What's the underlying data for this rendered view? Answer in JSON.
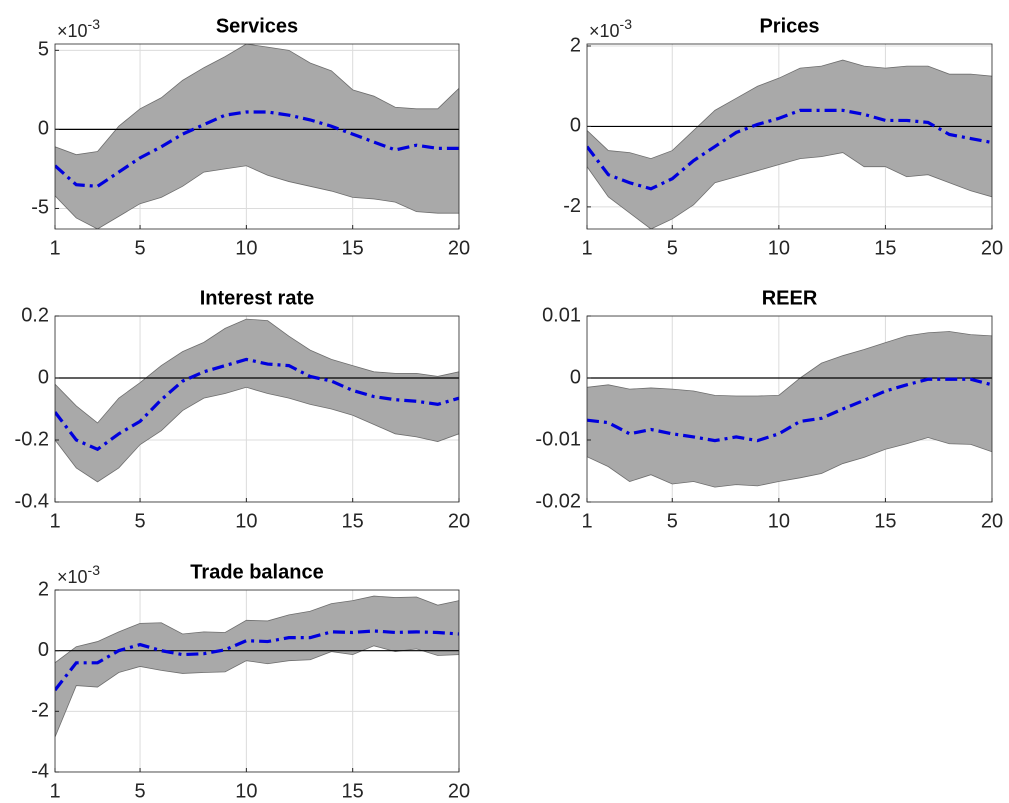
{
  "chart_data": [
    {
      "type": "line",
      "title": "Services",
      "y_multiplier": {
        "base": "×10",
        "exponent": "-3"
      },
      "x": [
        1,
        2,
        3,
        4,
        5,
        6,
        7,
        8,
        9,
        10,
        11,
        12,
        13,
        14,
        15,
        16,
        17,
        18,
        19,
        20
      ],
      "xlim": [
        1,
        20
      ],
      "xticks": [
        1,
        5,
        10,
        15,
        20
      ],
      "ylim": [
        -6.3,
        5.4
      ],
      "yticks": [
        -5,
        0,
        5
      ],
      "grid": true,
      "zero_line": true,
      "band": {
        "color": "#a9a9a9",
        "lower": [
          -4.2,
          -5.6,
          -6.3,
          -5.5,
          -4.7,
          -4.3,
          -3.6,
          -2.7,
          -2.5,
          -2.3,
          -2.9,
          -3.3,
          -3.6,
          -3.9,
          -4.3,
          -4.4,
          -4.6,
          -5.2,
          -5.3,
          -5.3
        ],
        "upper": [
          -1.1,
          -1.6,
          -1.4,
          0.2,
          1.3,
          2.0,
          3.1,
          3.9,
          4.6,
          5.4,
          5.2,
          5.0,
          4.2,
          3.7,
          2.5,
          2.1,
          1.4,
          1.3,
          1.3,
          2.6
        ]
      },
      "series": [
        {
          "color": "#0000dd",
          "values": [
            -2.3,
            -3.5,
            -3.6,
            -2.7,
            -1.8,
            -1.1,
            -0.3,
            0.3,
            0.9,
            1.1,
            1.1,
            0.9,
            0.6,
            0.2,
            -0.3,
            -0.8,
            -1.3,
            -1.0,
            -1.2,
            -1.2
          ]
        }
      ]
    },
    {
      "type": "line",
      "title": "Prices",
      "y_multiplier": {
        "base": "×10",
        "exponent": "-3"
      },
      "x": [
        1,
        2,
        3,
        4,
        5,
        6,
        7,
        8,
        9,
        10,
        11,
        12,
        13,
        14,
        15,
        16,
        17,
        18,
        19,
        20
      ],
      "xlim": [
        1,
        20
      ],
      "xticks": [
        1,
        5,
        10,
        15,
        20
      ],
      "ylim": [
        -2.55,
        2.05
      ],
      "yticks": [
        -2,
        0,
        2
      ],
      "grid": true,
      "zero_line": true,
      "band": {
        "color": "#a9a9a9",
        "lower": [
          -1.0,
          -1.75,
          -2.15,
          -2.55,
          -2.3,
          -1.95,
          -1.4,
          -1.25,
          -1.1,
          -0.95,
          -0.8,
          -0.75,
          -0.65,
          -1.0,
          -1.0,
          -1.25,
          -1.2,
          -1.4,
          -1.6,
          -1.75
        ],
        "upper": [
          -0.1,
          -0.6,
          -0.65,
          -0.8,
          -0.6,
          -0.1,
          0.4,
          0.7,
          1.0,
          1.2,
          1.45,
          1.5,
          1.65,
          1.5,
          1.45,
          1.5,
          1.5,
          1.3,
          1.3,
          1.25
        ]
      },
      "series": [
        {
          "color": "#0000dd",
          "values": [
            -0.5,
            -1.2,
            -1.4,
            -1.55,
            -1.3,
            -0.85,
            -0.5,
            -0.15,
            0.05,
            0.2,
            0.4,
            0.4,
            0.4,
            0.3,
            0.15,
            0.15,
            0.1,
            -0.2,
            -0.3,
            -0.4
          ]
        }
      ]
    },
    {
      "type": "line",
      "title": "Interest rate",
      "x": [
        1,
        2,
        3,
        4,
        5,
        6,
        7,
        8,
        9,
        10,
        11,
        12,
        13,
        14,
        15,
        16,
        17,
        18,
        19,
        20
      ],
      "xlim": [
        1,
        20
      ],
      "xticks": [
        1,
        5,
        10,
        15,
        20
      ],
      "ylim": [
        -0.4,
        0.2
      ],
      "yticks": [
        -0.4,
        -0.2,
        0,
        0.2
      ],
      "grid": true,
      "zero_line": true,
      "band": {
        "color": "#a9a9a9",
        "lower": [
          -0.2,
          -0.29,
          -0.335,
          -0.29,
          -0.215,
          -0.17,
          -0.105,
          -0.065,
          -0.05,
          -0.03,
          -0.05,
          -0.065,
          -0.085,
          -0.1,
          -0.12,
          -0.15,
          -0.18,
          -0.19,
          -0.205,
          -0.18
        ],
        "upper": [
          -0.02,
          -0.09,
          -0.145,
          -0.065,
          -0.015,
          0.04,
          0.085,
          0.115,
          0.16,
          0.19,
          0.185,
          0.135,
          0.09,
          0.06,
          0.04,
          0.02,
          0.015,
          0.015,
          0.005,
          0.02
        ]
      },
      "series": [
        {
          "color": "#0000dd",
          "values": [
            -0.11,
            -0.2,
            -0.23,
            -0.18,
            -0.14,
            -0.07,
            -0.01,
            0.02,
            0.04,
            0.06,
            0.045,
            0.04,
            0.005,
            -0.01,
            -0.04,
            -0.06,
            -0.07,
            -0.075,
            -0.085,
            -0.065
          ]
        }
      ]
    },
    {
      "type": "line",
      "title": "REER",
      "x": [
        1,
        2,
        3,
        4,
        5,
        6,
        7,
        8,
        9,
        10,
        11,
        12,
        13,
        14,
        15,
        16,
        17,
        18,
        19,
        20
      ],
      "xlim": [
        1,
        20
      ],
      "xticks": [
        1,
        5,
        10,
        15,
        20
      ],
      "ylim": [
        -0.02,
        0.01
      ],
      "yticks": [
        -0.02,
        -0.01,
        0,
        0.01
      ],
      "grid": true,
      "zero_line": true,
      "band": {
        "color": "#a9a9a9",
        "lower": [
          -0.0127,
          -0.0143,
          -0.0167,
          -0.0156,
          -0.0171,
          -0.0167,
          -0.0176,
          -0.0172,
          -0.0174,
          -0.0167,
          -0.0161,
          -0.0154,
          -0.0138,
          -0.0128,
          -0.0115,
          -0.0106,
          -0.0096,
          -0.0106,
          -0.0107,
          -0.0119
        ],
        "upper": [
          -0.0015,
          -0.0011,
          -0.0018,
          -0.0016,
          -0.0018,
          -0.0021,
          -0.0028,
          -0.0029,
          -0.0029,
          -0.0028,
          0,
          0.0024,
          0.0036,
          0.0046,
          0.0057,
          0.0068,
          0.0073,
          0.0075,
          0.007,
          0.0068
        ]
      },
      "series": [
        {
          "color": "#0000dd",
          "values": [
            -0.0068,
            -0.0072,
            -0.009,
            -0.0083,
            -0.009,
            -0.0095,
            -0.0101,
            -0.0095,
            -0.0101,
            -0.009,
            -0.007,
            -0.0065,
            -0.005,
            -0.0036,
            -0.0021,
            -0.0011,
            -0.0002,
            -0.0002,
            -0.0002,
            -0.0011
          ]
        }
      ]
    },
    {
      "type": "line",
      "title": "Trade balance",
      "y_multiplier": {
        "base": "×10",
        "exponent": "-3"
      },
      "x": [
        1,
        2,
        3,
        4,
        5,
        6,
        7,
        8,
        9,
        10,
        11,
        12,
        13,
        14,
        15,
        16,
        17,
        18,
        19,
        20
      ],
      "xlim": [
        1,
        20
      ],
      "xticks": [
        1,
        5,
        10,
        15,
        20
      ],
      "ylim": [
        -4,
        2
      ],
      "yticks": [
        -4,
        -2,
        0,
        2
      ],
      "grid": true,
      "zero_line": true,
      "band": {
        "color": "#a9a9a9",
        "lower": [
          -2.85,
          -1.15,
          -1.2,
          -0.72,
          -0.52,
          -0.65,
          -0.75,
          -0.72,
          -0.7,
          -0.33,
          -0.43,
          -0.33,
          -0.3,
          -0.03,
          -0.13,
          0.16,
          -0.03,
          0.06,
          -0.16,
          -0.13
        ],
        "upper": [
          -0.4,
          0.13,
          0.3,
          0.62,
          0.9,
          0.92,
          0.55,
          0.62,
          0.6,
          1.0,
          0.98,
          1.18,
          1.3,
          1.55,
          1.65,
          1.8,
          1.75,
          1.77,
          1.5,
          1.65
        ]
      },
      "series": [
        {
          "color": "#0000dd",
          "values": [
            -1.3,
            -0.4,
            -0.4,
            0,
            0.2,
            0,
            -0.13,
            -0.1,
            0.03,
            0.33,
            0.3,
            0.43,
            0.43,
            0.62,
            0.6,
            0.65,
            0.6,
            0.62,
            0.6,
            0.55
          ]
        }
      ]
    }
  ]
}
